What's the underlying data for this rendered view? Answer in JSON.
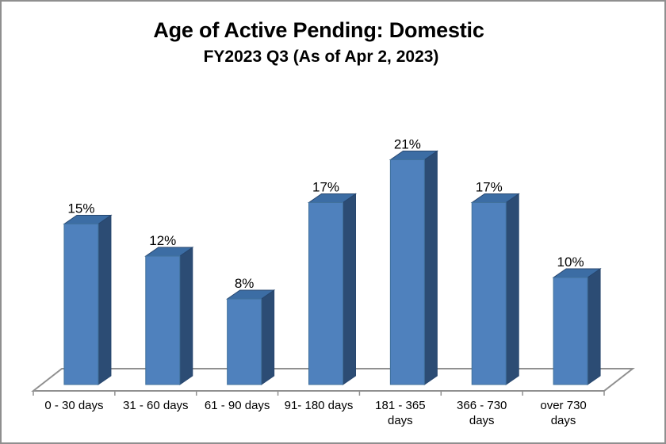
{
  "window": {
    "background_color": "#ffffff",
    "border_color": "#8f8f8f"
  },
  "chart_data": {
    "type": "bar",
    "variant": "3d-column",
    "title": "Age of Active Pending: Domestic",
    "subtitle": "FY2023 Q3 (As of Apr 2, 2023)",
    "categories": [
      "0 - 30 days",
      "31 - 60 days",
      "61 - 90 days",
      "91- 180 days",
      "181 - 365 days",
      "366 - 730 days",
      "over 730 days"
    ],
    "category_label_lines": [
      [
        "0 - 30 days"
      ],
      [
        "31 - 60 days"
      ],
      [
        "61 - 90 days"
      ],
      [
        "91- 180 days"
      ],
      [
        "181 - 365",
        "days"
      ],
      [
        "366 - 730",
        "days"
      ],
      [
        "over 730",
        "days"
      ]
    ],
    "values": [
      15,
      12,
      8,
      17,
      21,
      17,
      10
    ],
    "data_labels": [
      "15%",
      "12%",
      "8%",
      "17%",
      "21%",
      "17%",
      "10%"
    ],
    "xlabel": "",
    "ylabel": "",
    "ylim": [
      0,
      25
    ],
    "grid": false,
    "legend_position": "none",
    "colors": {
      "bar_front": "#4f81bd",
      "bar_top": "#3c6da4",
      "bar_side": "#2c4c74",
      "bar_edge": "#27466e",
      "floor_line": "#909090",
      "label_text": "#000000"
    }
  }
}
